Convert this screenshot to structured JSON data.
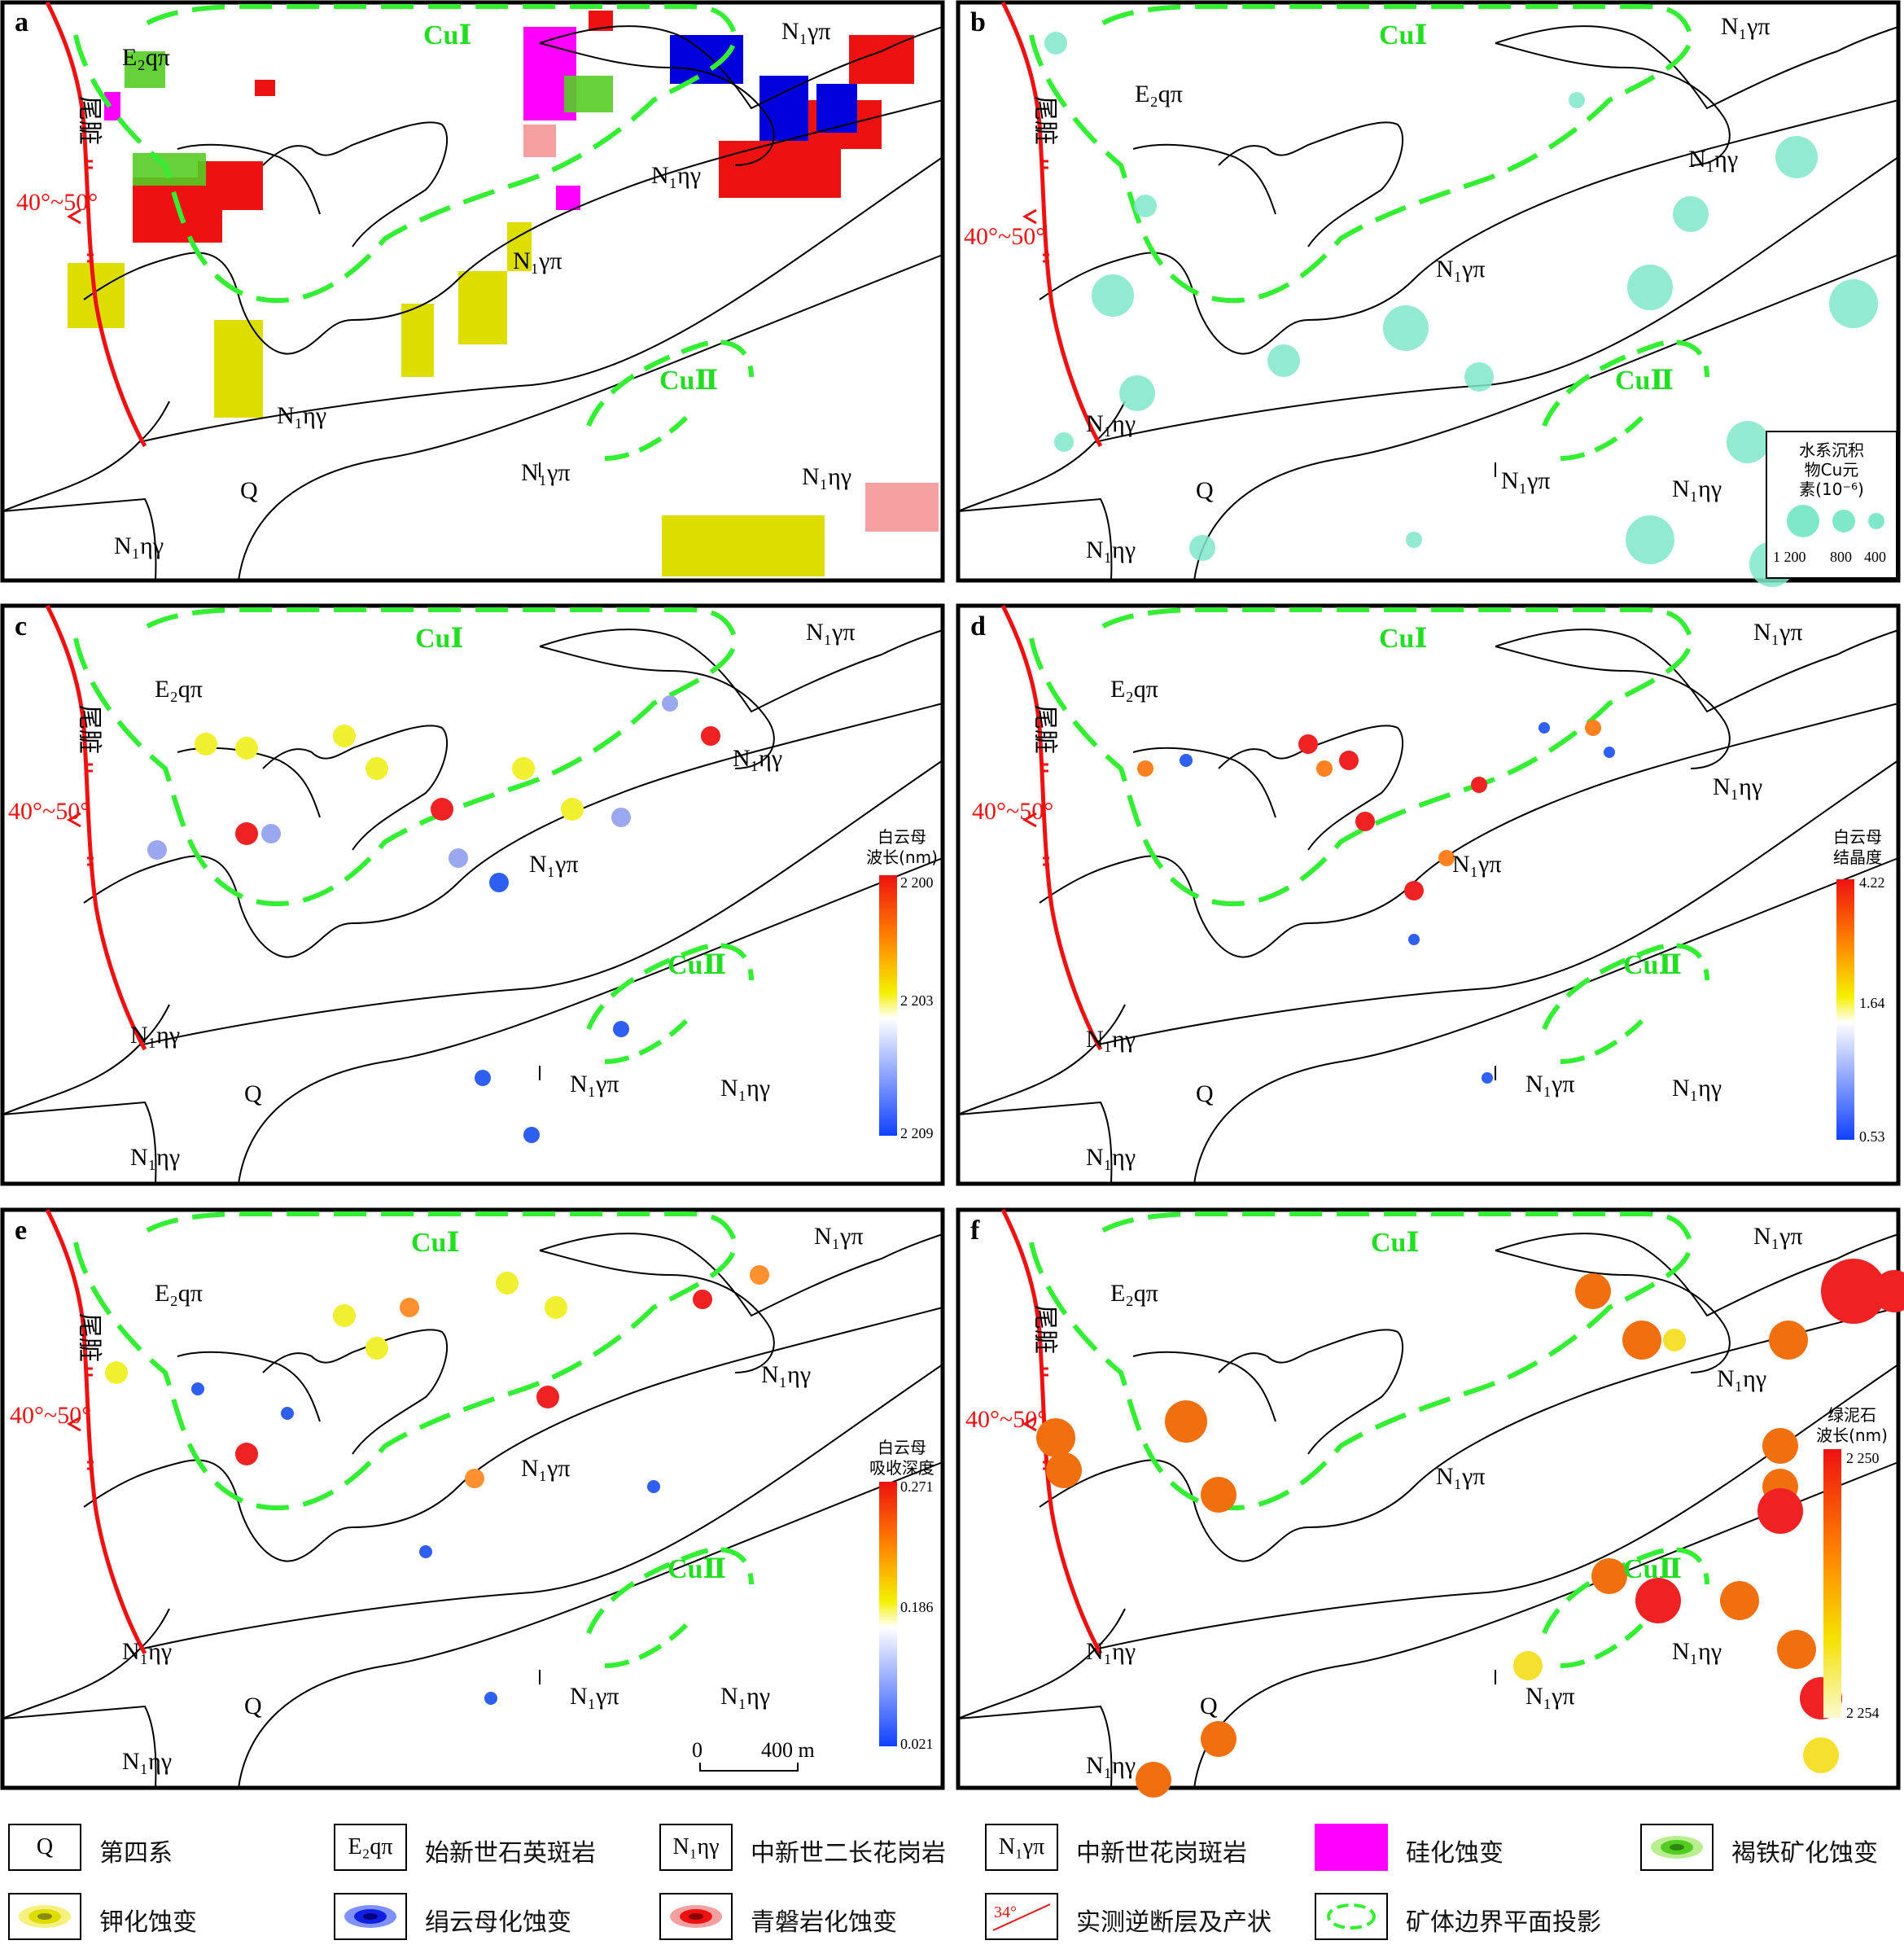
{
  "panels": [
    {
      "letter": "a"
    },
    {
      "letter": "b"
    },
    {
      "letter": "c"
    },
    {
      "letter": "d"
    },
    {
      "letter": "e"
    },
    {
      "letter": "f"
    }
  ],
  "map_labels": {
    "cu1": "CuⅠ",
    "cu2": "CuⅡ",
    "e2qpi": "E₂qπ",
    "n1ygpi": "N₁γπ",
    "n1nyg": "N₁ηγ",
    "q": "Q",
    "fault_name": "尾脏",
    "fault_dip": "40°~50°"
  },
  "colorbars": {
    "b": {
      "title_lines": [
        "水系沉积",
        "物Cu元",
        "素(10⁻⁶)"
      ],
      "sizes": [
        "1 200",
        "800",
        "400"
      ]
    },
    "c": {
      "title_lines": [
        "白云母",
        "波长(nm)"
      ],
      "ticks": [
        "2 200",
        "2 203",
        "2 209"
      ]
    },
    "d": {
      "title_lines": [
        "白云母",
        "结晶度"
      ],
      "ticks": [
        "4.22",
        "1.64",
        "0.53"
      ]
    },
    "e": {
      "title_lines": [
        "白云母",
        "吸收深度"
      ],
      "ticks": [
        "0.271",
        "0.186",
        "0.021"
      ]
    },
    "f": {
      "title_lines": [
        "绿泥石",
        "波长(nm)"
      ],
      "ticks": [
        "2 250",
        "2 254"
      ]
    }
  },
  "scale_bar": {
    "zero": "0",
    "length": "400 m"
  },
  "legend": [
    {
      "symbol": "Q",
      "label": "第四系"
    },
    {
      "symbol": "E₂qπ",
      "label": "始新世石英斑岩"
    },
    {
      "symbol": "N₁ηγ",
      "label": "中新世二长花岗岩"
    },
    {
      "symbol": "N₁γπ",
      "label": "中新世花岗斑岩"
    },
    {
      "symbol": "",
      "label": "硅化蚀变",
      "color": "#ff00ff"
    },
    {
      "symbol": "",
      "label": "褐铁矿化蚀变",
      "color": "#55cc22"
    },
    {
      "symbol": "",
      "label": "钾化蚀变",
      "color": "#dddd00"
    },
    {
      "symbol": "",
      "label": "绢云母化蚀变",
      "color": "#0000dd"
    },
    {
      "symbol": "",
      "label": "青磐岩化蚀变",
      "color": "#ee1111"
    },
    {
      "symbol": "34°",
      "label": "实测逆断层及产状"
    },
    {
      "symbol": "",
      "label": "矿体边界平面投影"
    }
  ]
}
